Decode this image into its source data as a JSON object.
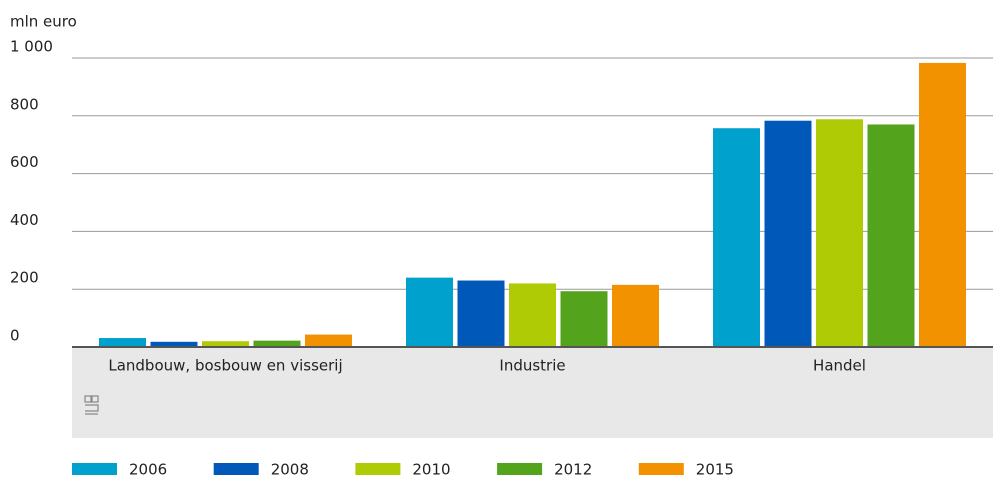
{
  "chart_data": {
    "type": "bar",
    "y_label": "mln euro",
    "categories": [
      "Landbouw, bosbouw en visserij",
      "Industrie",
      "Handel"
    ],
    "series": [
      {
        "name": "2006",
        "color": "#00a1cd",
        "values": [
          31,
          240,
          757
        ]
      },
      {
        "name": "2008",
        "color": "#0058b8",
        "values": [
          18,
          230,
          783
        ]
      },
      {
        "name": "2010",
        "color": "#afcb05",
        "values": [
          20,
          220,
          788
        ]
      },
      {
        "name": "2012",
        "color": "#53a31d",
        "values": [
          22,
          193,
          770
        ]
      },
      {
        "name": "2015",
        "color": "#f39200",
        "values": [
          43,
          215,
          983
        ]
      }
    ],
    "ylim": [
      0,
      1000
    ],
    "yticks": [
      0,
      200,
      400,
      600,
      800,
      {
        "value": 1000,
        "label": "1 000"
      }
    ],
    "grid": true
  }
}
